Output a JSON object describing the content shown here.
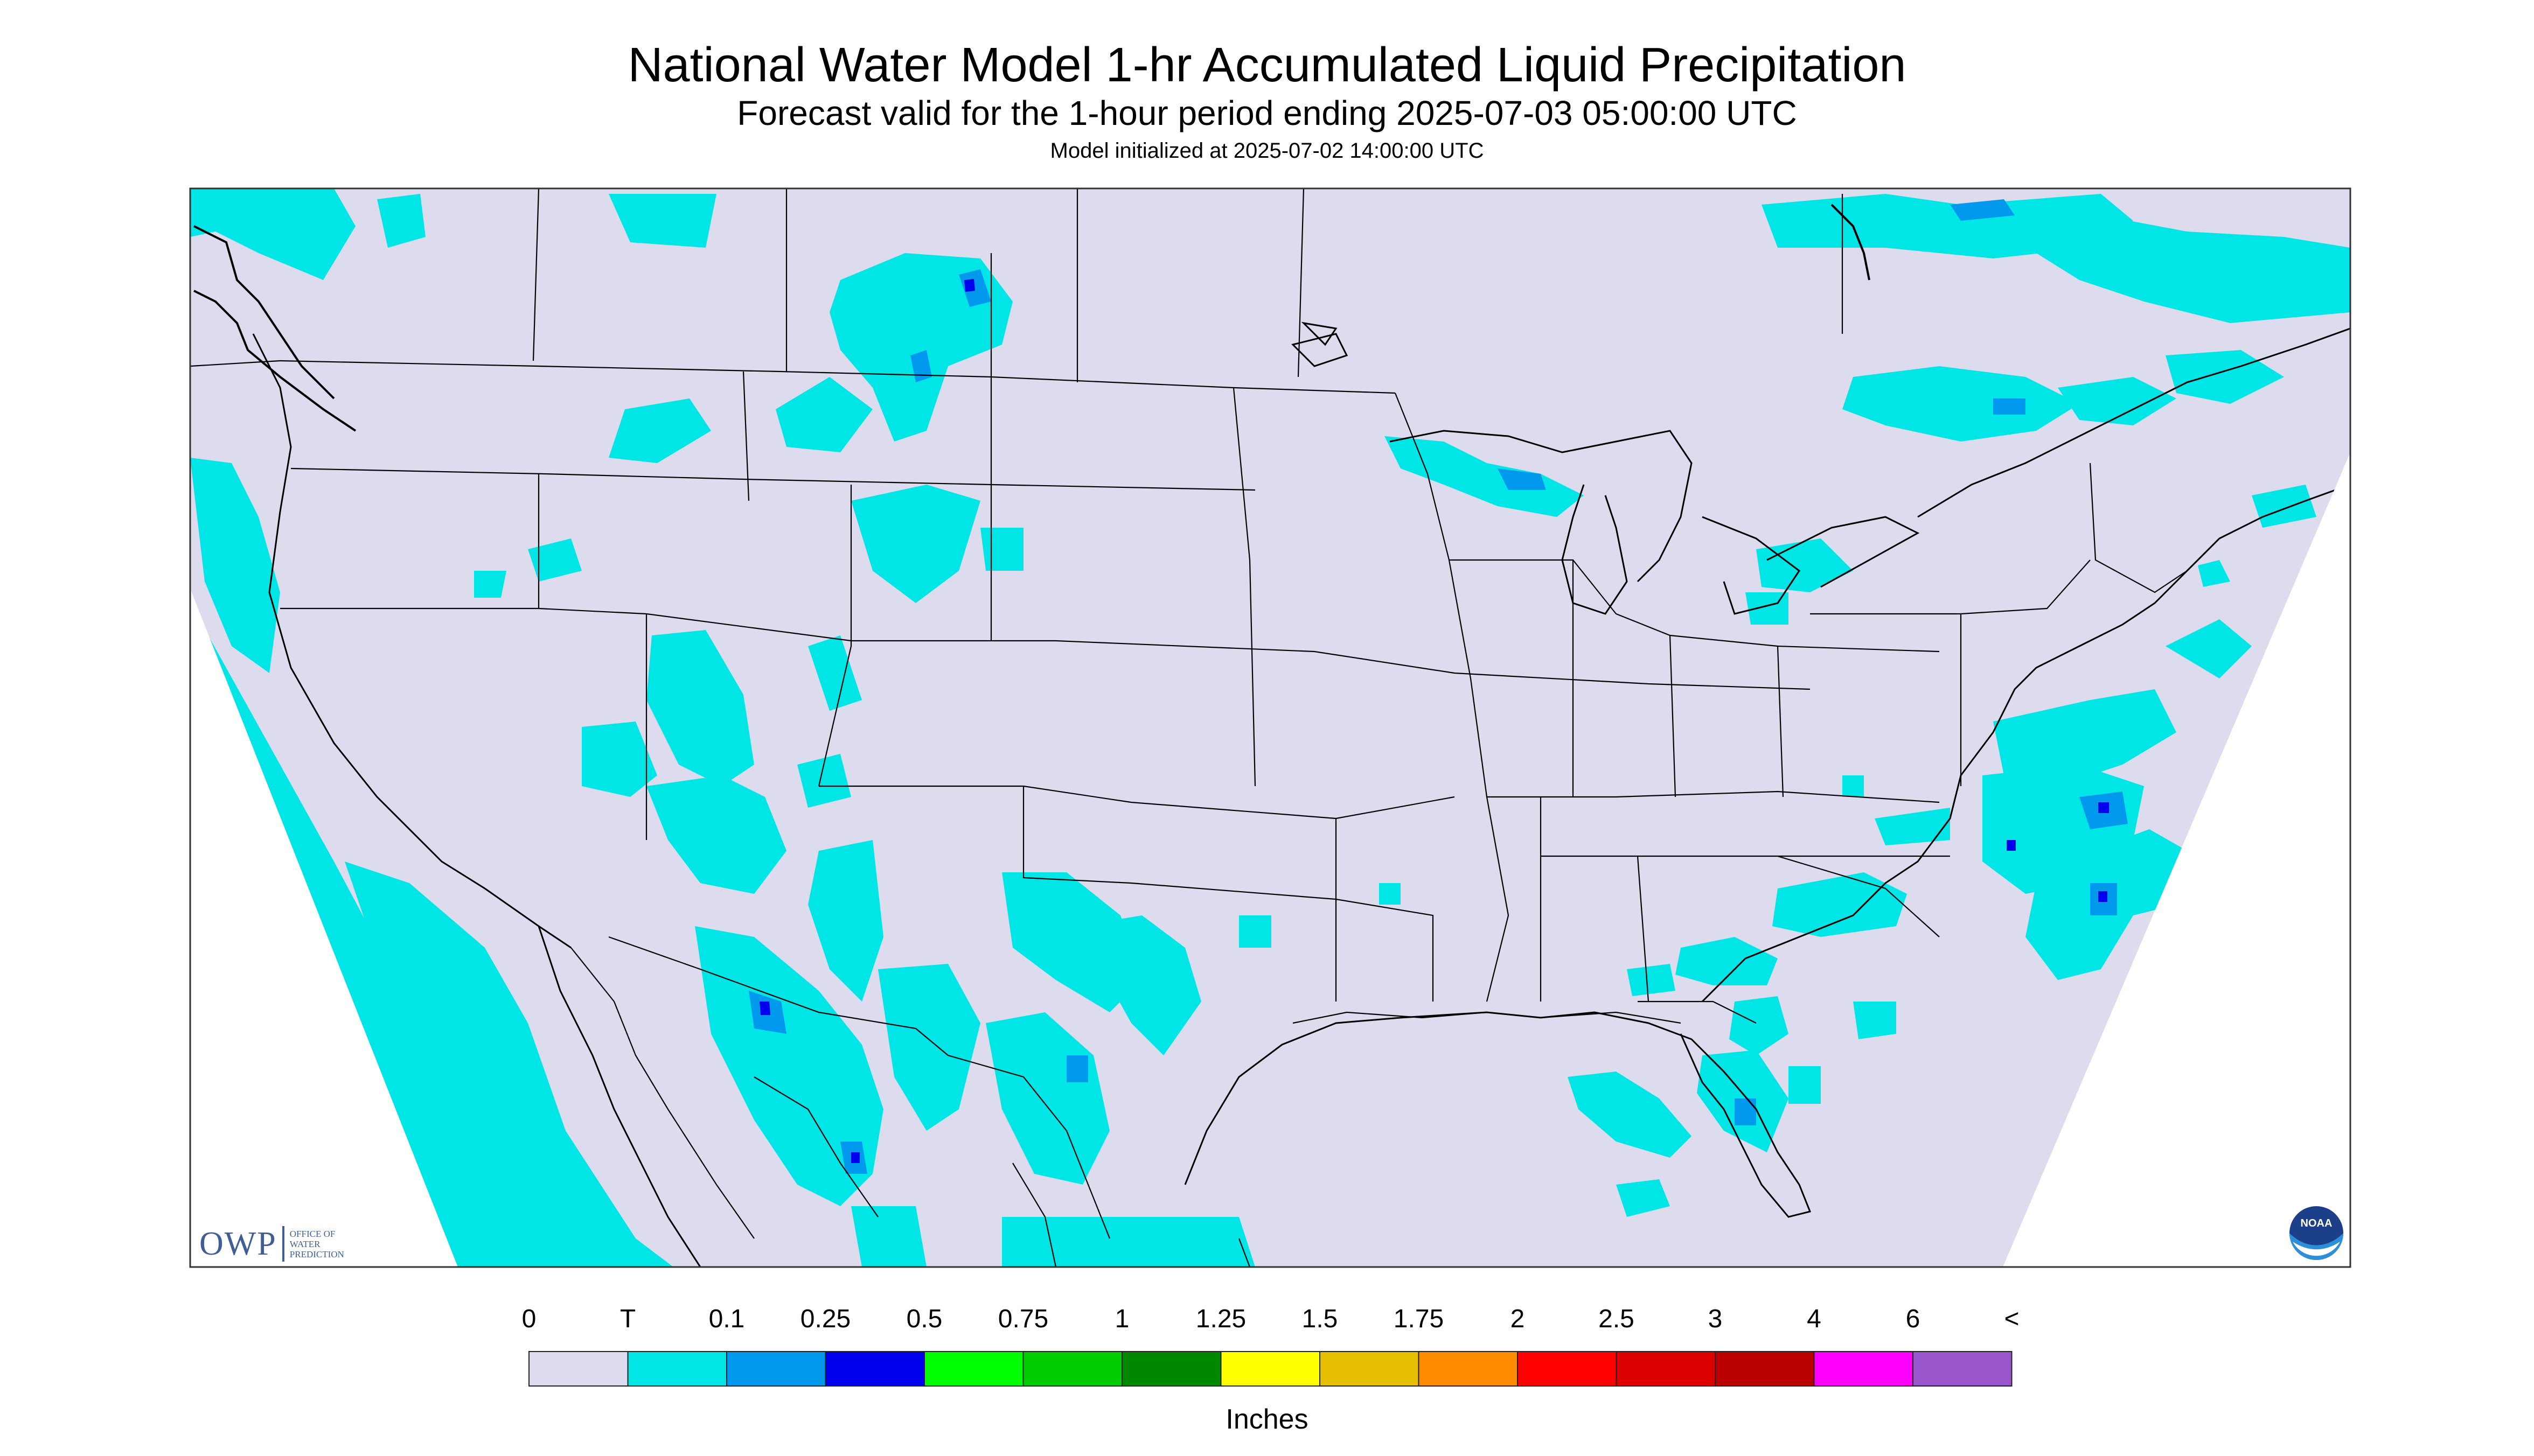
{
  "header": {
    "title": "National Water Model 1-hr Accumulated Liquid Precipitation",
    "subtitle": "Forecast valid for the 1-hour period ending 2025-07-03 05:00:00 UTC",
    "init_line": "Model initialized at 2025-07-02 14:00:00 UTC"
  },
  "legend": {
    "unit": "Inches",
    "tick_labels": [
      "0",
      "T",
      "0.1",
      "0.25",
      "0.5",
      "0.75",
      "1",
      "1.25",
      "1.5",
      "1.75",
      "2",
      "2.5",
      "3",
      "4",
      "6",
      "<"
    ],
    "colors": [
      "#dcdcee",
      "#00e5e5",
      "#0099ee",
      "#0000ee",
      "#00ff00",
      "#00cc00",
      "#008800",
      "#ffff00",
      "#e5bf00",
      "#ff8c00",
      "#ff0000",
      "#dd0000",
      "#bb0000",
      "#ff00ff",
      "#9955cc"
    ]
  },
  "logos": {
    "owp_letters": "OWP",
    "owp_words": [
      "OFFICE OF",
      "WATER",
      "PREDICTION"
    ],
    "noaa_text": "NOAA"
  },
  "map": {
    "background_color": "#dcdcee",
    "light_rain_color": "#00e5e5",
    "moderate_rain_color": "#0099ee",
    "heavy_rain_color": "#0000ee"
  }
}
